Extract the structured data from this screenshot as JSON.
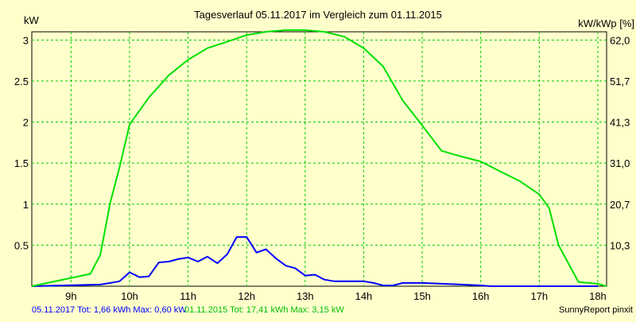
{
  "chart_data": {
    "type": "line",
    "title": "Tagesverlauf 05.11.2017 im Vergleich zum 01.11.2015",
    "ylabel_left": "kW",
    "ylabel_right": "kW/kWp [%]",
    "xlim": [
      8.33,
      18.15
    ],
    "ylim": [
      0,
      3.1
    ],
    "x_ticks": [
      9,
      10,
      11,
      12,
      13,
      14,
      15,
      16,
      17,
      18
    ],
    "x_tick_labels": [
      "9h",
      "10h",
      "11h",
      "12h",
      "13h",
      "14h",
      "15h",
      "16h",
      "17h",
      "18h"
    ],
    "y_ticks_left": [
      0.5,
      1,
      1.5,
      2,
      2.5,
      3
    ],
    "y_tick_labels_left": [
      "0.5",
      "1",
      "1.5",
      "2",
      "2.5",
      "3"
    ],
    "y_ticks_right_kw": [
      0.5,
      1.0,
      1.5,
      2.0,
      2.5,
      3.0
    ],
    "y_tick_labels_right": [
      "10,3",
      "20,7",
      "31,0",
      "41,3",
      "51,7",
      "62,0"
    ],
    "grid": true,
    "series": [
      {
        "name": "05.11.2017",
        "color": "#0000ff",
        "x": [
          8.33,
          9.5,
          9.67,
          9.83,
          10.0,
          10.17,
          10.33,
          10.5,
          10.67,
          10.83,
          11.0,
          11.17,
          11.33,
          11.5,
          11.67,
          11.83,
          12.0,
          12.17,
          12.33,
          12.5,
          12.67,
          12.83,
          13.0,
          13.17,
          13.33,
          13.5,
          13.67,
          13.83,
          14.0,
          14.17,
          14.33,
          14.5,
          14.67,
          15.0,
          15.33,
          15.67,
          16.0,
          16.17,
          16.33,
          16.67,
          16.83,
          17.0,
          17.33,
          17.67,
          18.0
        ],
        "y": [
          0,
          0.02,
          0.04,
          0.06,
          0.17,
          0.11,
          0.12,
          0.29,
          0.3,
          0.33,
          0.35,
          0.3,
          0.36,
          0.28,
          0.39,
          0.6,
          0.6,
          0.41,
          0.45,
          0.34,
          0.25,
          0.22,
          0.13,
          0.14,
          0.08,
          0.06,
          0.06,
          0.06,
          0.06,
          0.04,
          0.01,
          0.01,
          0.04,
          0.04,
          0.03,
          0.02,
          0.01,
          0.0,
          0.0,
          0.0,
          0.0,
          0.0,
          0.0,
          0.0,
          0.0
        ]
      },
      {
        "name": "01.11.2015",
        "color": "#00e000",
        "x": [
          8.33,
          9.33,
          9.5,
          9.67,
          9.83,
          10.0,
          10.33,
          10.67,
          11.0,
          11.33,
          11.67,
          12.0,
          12.33,
          12.67,
          13.0,
          13.33,
          13.67,
          14.0,
          14.33,
          14.67,
          15.0,
          15.33,
          15.67,
          16.0,
          16.33,
          16.67,
          17.0,
          17.17,
          17.33,
          17.67,
          18.0,
          18.15
        ],
        "y": [
          0,
          0.15,
          0.38,
          1.02,
          1.45,
          1.97,
          2.3,
          2.57,
          2.76,
          2.9,
          2.98,
          3.06,
          3.1,
          3.12,
          3.12,
          3.1,
          3.04,
          2.9,
          2.68,
          2.26,
          1.96,
          1.65,
          1.58,
          1.52,
          1.4,
          1.28,
          1.12,
          0.95,
          0.5,
          0.05,
          0.03,
          0.0
        ]
      }
    ]
  },
  "footer": {
    "left": "05.11.2017 Tot: 1,66 kWh Max: 0,60 kW",
    "middle": "01.11.2015 Tot: 17,41 kWh Max: 3,15 kW",
    "right": "SunnyReport pinxit",
    "left_color": "#0000ff",
    "middle_color": "#00c000"
  }
}
